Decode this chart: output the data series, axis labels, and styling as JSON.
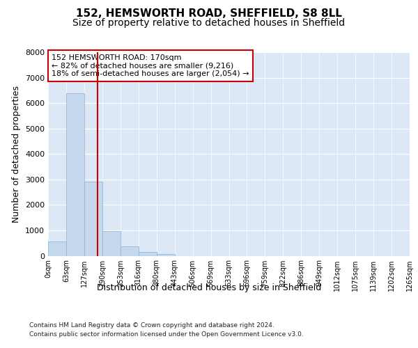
{
  "title": "152, HEMSWORTH ROAD, SHEFFIELD, S8 8LL",
  "subtitle": "Size of property relative to detached houses in Sheffield",
  "xlabel": "Distribution of detached houses by size in Sheffield",
  "ylabel": "Number of detached properties",
  "footer_line1": "Contains HM Land Registry data © Crown copyright and database right 2024.",
  "footer_line2": "Contains public sector information licensed under the Open Government Licence v3.0.",
  "bin_labels": [
    "0sqm",
    "63sqm",
    "127sqm",
    "190sqm",
    "253sqm",
    "316sqm",
    "380sqm",
    "443sqm",
    "506sqm",
    "569sqm",
    "633sqm",
    "696sqm",
    "759sqm",
    "822sqm",
    "886sqm",
    "949sqm",
    "1012sqm",
    "1075sqm",
    "1139sqm",
    "1202sqm",
    "1265sqm"
  ],
  "bar_heights": [
    560,
    6400,
    2920,
    960,
    360,
    140,
    70,
    0,
    0,
    0,
    0,
    0,
    0,
    0,
    0,
    0,
    0,
    0,
    0,
    0
  ],
  "bar_color": "#c5d8ed",
  "bar_edge_color": "#8ab0d0",
  "vline_x": 2.72,
  "vline_color": "#cc0000",
  "annotation_text": "152 HEMSWORTH ROAD: 170sqm\n← 82% of detached houses are smaller (9,216)\n18% of semi-detached houses are larger (2,054) →",
  "annotation_box_color": "#ffffff",
  "annotation_box_edge_color": "#cc0000",
  "ylim": [
    0,
    8000
  ],
  "yticks": [
    0,
    1000,
    2000,
    3000,
    4000,
    5000,
    6000,
    7000,
    8000
  ],
  "background_color": "#dce8f5",
  "fig_background": "#ffffff",
  "grid_color": "#ffffff",
  "title_fontsize": 11,
  "subtitle_fontsize": 10,
  "axis_label_fontsize": 9,
  "tick_fontsize": 8,
  "annotation_fontsize": 8
}
